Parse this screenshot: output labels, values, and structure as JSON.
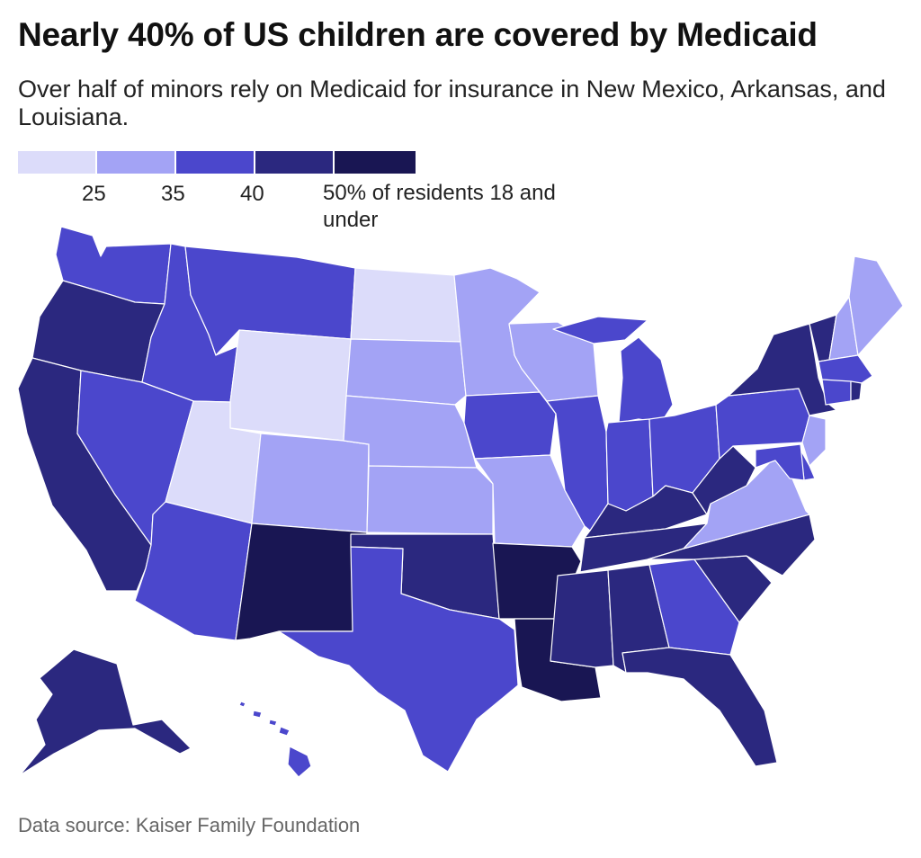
{
  "title": "Nearly 40% of US children are covered by Medicaid",
  "subtitle": "Over half of minors rely on Medicaid for insurance in New Mexico, Arkansas, and Louisiana.",
  "legend": {
    "bins": [
      {
        "color": "#dcdcfa"
      },
      {
        "color": "#a3a3f5"
      },
      {
        "color": "#4b47cc"
      },
      {
        "color": "#2b287f"
      },
      {
        "color": "#191653"
      }
    ],
    "ticks": [
      "25",
      "35",
      "40",
      "50% of residents 18 and under"
    ]
  },
  "source": "Data source: Kaiser Family Foundation",
  "map_data": {
    "type": "choropleth",
    "region": "United States",
    "states": [
      {
        "name": "Washington",
        "bin": 2
      },
      {
        "name": "Oregon",
        "bin": 3
      },
      {
        "name": "California",
        "bin": 3
      },
      {
        "name": "Idaho",
        "bin": 2
      },
      {
        "name": "Nevada",
        "bin": 2
      },
      {
        "name": "Montana",
        "bin": 2
      },
      {
        "name": "Wyoming",
        "bin": 0
      },
      {
        "name": "Utah",
        "bin": 0
      },
      {
        "name": "Arizona",
        "bin": 2
      },
      {
        "name": "Colorado",
        "bin": 1
      },
      {
        "name": "New Mexico",
        "bin": 4
      },
      {
        "name": "North Dakota",
        "bin": 0
      },
      {
        "name": "South Dakota",
        "bin": 1
      },
      {
        "name": "Nebraska",
        "bin": 1
      },
      {
        "name": "Kansas",
        "bin": 1
      },
      {
        "name": "Oklahoma",
        "bin": 3
      },
      {
        "name": "Texas",
        "bin": 2
      },
      {
        "name": "Minnesota",
        "bin": 1
      },
      {
        "name": "Iowa",
        "bin": 2
      },
      {
        "name": "Missouri",
        "bin": 1
      },
      {
        "name": "Arkansas",
        "bin": 4
      },
      {
        "name": "Louisiana",
        "bin": 4
      },
      {
        "name": "Wisconsin",
        "bin": 1
      },
      {
        "name": "Illinois",
        "bin": 2
      },
      {
        "name": "Michigan",
        "bin": 2
      },
      {
        "name": "Indiana",
        "bin": 2
      },
      {
        "name": "Ohio",
        "bin": 2
      },
      {
        "name": "Kentucky",
        "bin": 3
      },
      {
        "name": "Tennessee",
        "bin": 3
      },
      {
        "name": "Mississippi",
        "bin": 3
      },
      {
        "name": "Alabama",
        "bin": 3
      },
      {
        "name": "Georgia",
        "bin": 2
      },
      {
        "name": "Florida",
        "bin": 3
      },
      {
        "name": "South Carolina",
        "bin": 3
      },
      {
        "name": "North Carolina",
        "bin": 3
      },
      {
        "name": "Virginia",
        "bin": 1
      },
      {
        "name": "West Virginia",
        "bin": 3
      },
      {
        "name": "Pennsylvania",
        "bin": 2
      },
      {
        "name": "New York",
        "bin": 3
      },
      {
        "name": "Vermont",
        "bin": 3
      },
      {
        "name": "New Hampshire",
        "bin": 1
      },
      {
        "name": "Maine",
        "bin": 1
      },
      {
        "name": "Massachusetts",
        "bin": 2
      },
      {
        "name": "Connecticut",
        "bin": 2
      },
      {
        "name": "Rhode Island",
        "bin": 3
      },
      {
        "name": "New Jersey",
        "bin": 1
      },
      {
        "name": "Delaware",
        "bin": 2
      },
      {
        "name": "Maryland",
        "bin": 2
      },
      {
        "name": "Alaska",
        "bin": 3
      },
      {
        "name": "Hawaii",
        "bin": 2
      }
    ]
  }
}
